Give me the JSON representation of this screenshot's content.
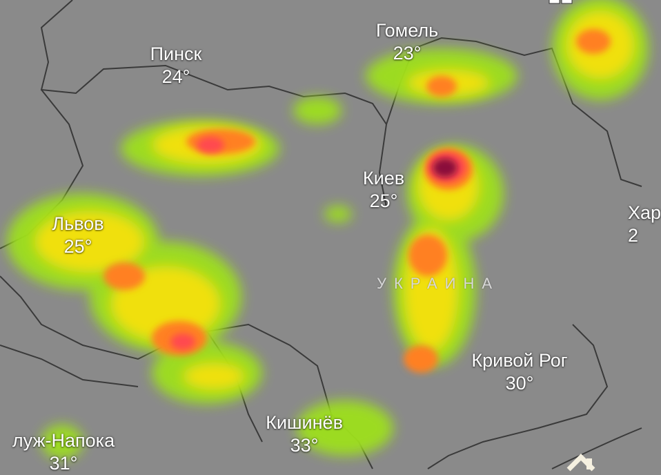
{
  "map": {
    "layer": "radar-precipitation",
    "colors": {
      "background": "#8a8a8a",
      "border": "#3a3a3a",
      "light": "#9ee01a",
      "moderate": "#f0e010",
      "heavy": "#ff8020",
      "intense": "#ff4a50",
      "extreme": "#8a0a3a"
    },
    "country_label": "УКРАИНА",
    "cities": [
      {
        "name": "Пинск",
        "temp": "24°"
      },
      {
        "name": "Гомель",
        "temp": "23°"
      },
      {
        "name": "Киев",
        "temp": "25°"
      },
      {
        "name": "Львов",
        "temp": "25°"
      },
      {
        "name": "Кривой Рог",
        "temp": "30°"
      },
      {
        "name": "Кишинёв",
        "temp": "33°"
      },
      {
        "name": "луж-Напока",
        "temp": "31°"
      },
      {
        "name": "Хар",
        "temp": "2"
      }
    ],
    "controls": {
      "top_icon": "layers-icon",
      "bottom_icon": "home-icon"
    }
  }
}
